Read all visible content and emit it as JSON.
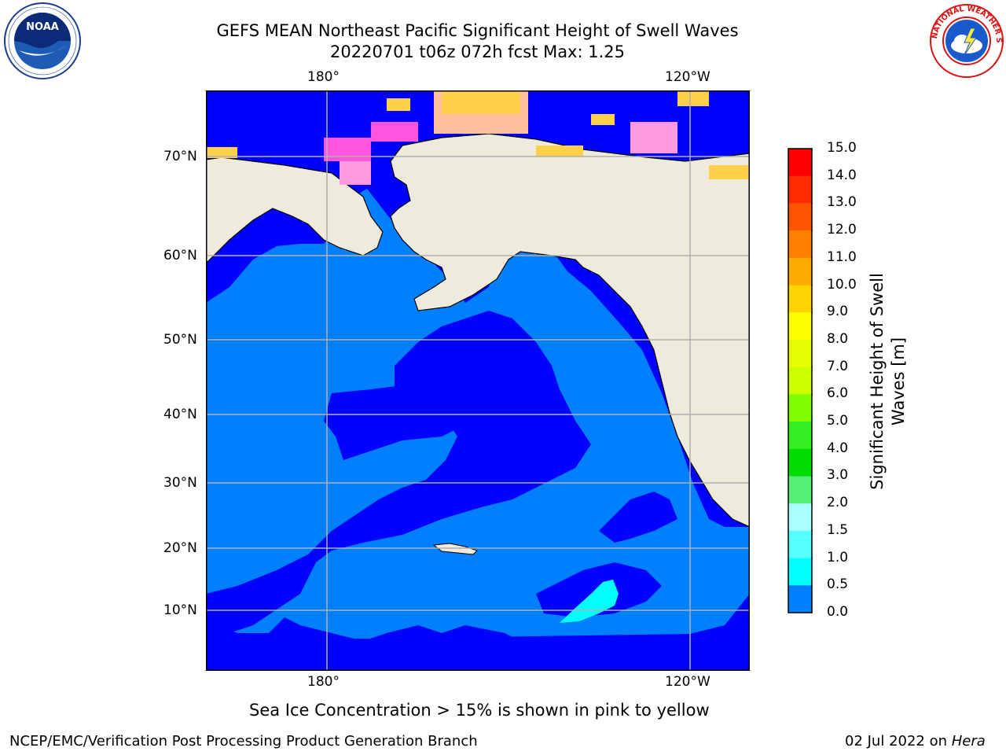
{
  "header": {
    "title_line1": "GEFS MEAN Northeast Pacific Significant Height of Swell Waves",
    "title_line2": "20220701 t06z 072h fcst   Max: 1.25"
  },
  "logos": {
    "left": {
      "text": "NOAA",
      "ring_text": "NATIONAL OCEANIC AND ATMOSPHERIC ADMINISTRATION · U.S. DEPARTMENT OF COMMERCE"
    },
    "right": {
      "ring_text": "NATIONAL WEATHER SERVICE"
    }
  },
  "map": {
    "lon_labels_top": [
      "180°",
      "120°W"
    ],
    "lon_labels_bottom": [
      "180°",
      "120°W"
    ],
    "lat_labels": [
      "70°N",
      "60°N",
      "50°N",
      "40°N",
      "30°N",
      "20°N",
      "10°N"
    ],
    "colors": {
      "land": "#efebdc",
      "swell_0_05": "#0000ff",
      "swell_05_10": "#0080ff",
      "swell_10_15": "#00ffff",
      "ice_pink": "#ff55dd",
      "ice_yellow": "#ffd04a"
    }
  },
  "colorbar": {
    "ticks": [
      "15.0",
      "14.0",
      "13.0",
      "12.0",
      "11.0",
      "10.0",
      "9.0",
      "8.0",
      "7.0",
      "6.0",
      "5.0",
      "4.0",
      "3.0",
      "2.0",
      "1.5",
      "1.0",
      "0.5",
      "0.0"
    ],
    "colors": [
      "#ff0000",
      "#ff2a00",
      "#ff5500",
      "#ff8000",
      "#ffaa00",
      "#ffd400",
      "#ffff00",
      "#e5ff00",
      "#ccff00",
      "#80ff00",
      "#33ee22",
      "#00dd00",
      "#55ee77",
      "#aaffff",
      "#55ffff",
      "#00ffff",
      "#0080ff",
      "#0000ff"
    ],
    "label": "Significant Height of Swell Waves [m]"
  },
  "caption": "Sea Ice Concentration > 15% is shown in pink to yellow",
  "footer": {
    "left": "NCEP/EMC/Verification Post Processing Product Generation Branch",
    "right_date": "02 Jul 2022 on ",
    "right_host": "Hera"
  }
}
